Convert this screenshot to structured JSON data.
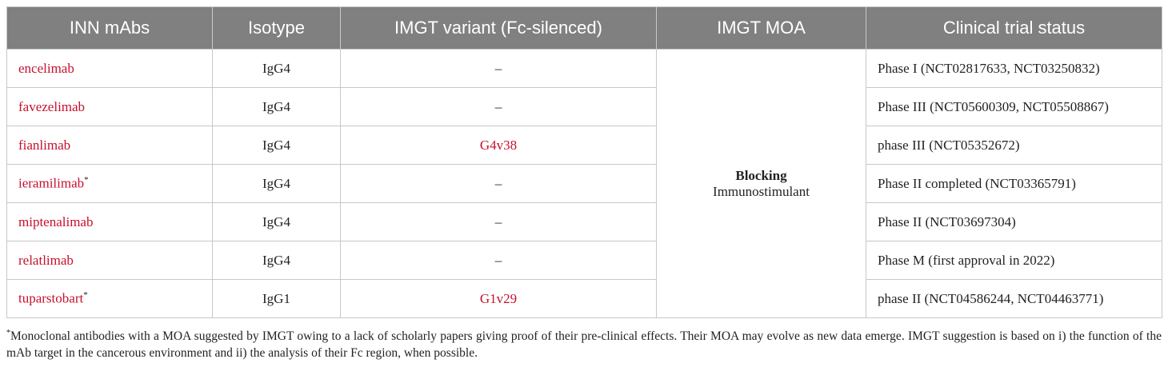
{
  "table": {
    "header": [
      "INN mAbs",
      "Isotype",
      "IMGT variant (Fc-silenced)",
      "IMGT MOA",
      "Clinical trial status"
    ],
    "header_color": "#808080",
    "name_color": "#c8102e",
    "rows": [
      {
        "name": "encelimab",
        "note": null,
        "isotype": "IgG4",
        "variant": "–",
        "variant_color": "#222222",
        "status": "Phase I (NCT02817633, NCT03250832)"
      },
      {
        "name": "favezelimab",
        "note": null,
        "isotype": "IgG4",
        "variant": "–",
        "variant_color": "#222222",
        "status": "Phase III (NCT05600309, NCT05508867)"
      },
      {
        "name": "fianlimab",
        "note": null,
        "isotype": "IgG4",
        "variant": "G4v38",
        "variant_color": "#c8102e",
        "status": "phase III (NCT05352672)"
      },
      {
        "name": "ieramilimab",
        "note": "*",
        "isotype": "IgG4",
        "variant": "–",
        "variant_color": "#222222",
        "status": "Phase II completed (NCT03365791)"
      },
      {
        "name": "miptenalimab",
        "note": null,
        "isotype": "IgG4",
        "variant": "–",
        "variant_color": "#222222",
        "status": "Phase II (NCT03697304)"
      },
      {
        "name": "relatlimab",
        "note": null,
        "isotype": "IgG4",
        "variant": "–",
        "variant_color": "#222222",
        "status": "Phase M (first approval in 2022)"
      },
      {
        "name": "tuparstobart",
        "note": "*",
        "isotype": "IgG1",
        "variant": "G1v29",
        "variant_color": "#c8102e",
        "status": "phase II (NCT04586244, NCT04463771)"
      }
    ],
    "moa": {
      "bold": "Blocking",
      "text": "Immunostimulant"
    },
    "footnote": {
      "marker": "*",
      "text": "Monoclonal antibodies with a MOA suggested by IMGT owing to a lack of scholarly papers giving proof of their pre-clinical effects. Their MOA may evolve as new data emerge. IMGT suggestion is based on i) the function of the mAb target in the cancerous environment and ii) the analysis of their Fc region, when possible."
    }
  }
}
